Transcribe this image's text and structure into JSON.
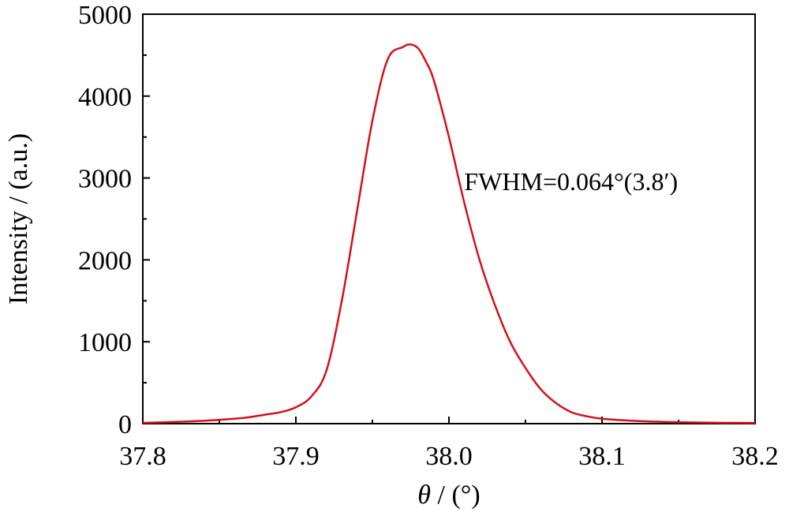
{
  "chart_data": {
    "type": "line",
    "title": "",
    "xlabel": {
      "symbol": "θ",
      "rest": " / (°)"
    },
    "ylabel": "Intensity / (a.u.)",
    "xlim": [
      37.8,
      38.2
    ],
    "ylim": [
      0,
      5000
    ],
    "x_ticks": [
      37.8,
      37.9,
      38.0,
      38.1,
      38.2
    ],
    "x_tick_labels": [
      "37.8",
      "37.9",
      "38.0",
      "38.1",
      "38.2"
    ],
    "y_ticks": [
      0,
      1000,
      2000,
      3000,
      4000,
      5000
    ],
    "y_tick_labels": [
      "0",
      "1000",
      "2000",
      "3000",
      "4000",
      "5000"
    ],
    "grid": false,
    "series": [
      {
        "color": "#d0121b",
        "x": [
          37.8,
          37.82,
          37.84,
          37.86,
          37.87,
          37.88,
          37.89,
          37.9,
          37.91,
          37.92,
          37.93,
          37.94,
          37.95,
          37.96,
          37.97,
          37.975,
          37.98,
          37.985,
          37.99,
          38.0,
          38.01,
          38.02,
          38.03,
          38.04,
          38.05,
          38.06,
          38.07,
          38.08,
          38.09,
          38.1,
          38.12,
          38.14,
          38.16,
          38.18,
          38.2
        ],
        "y": [
          10,
          20,
          35,
          60,
          80,
          110,
          140,
          200,
          330,
          650,
          1500,
          2600,
          3700,
          4450,
          4600,
          4630,
          4580,
          4420,
          4200,
          3500,
          2700,
          2000,
          1450,
          1000,
          680,
          420,
          250,
          140,
          90,
          60,
          35,
          22,
          15,
          10,
          8
        ]
      }
    ],
    "annotations": [
      {
        "text": "FWHM=0.064°(3.8′)",
        "x": 38.01,
        "y": 2850
      }
    ]
  }
}
